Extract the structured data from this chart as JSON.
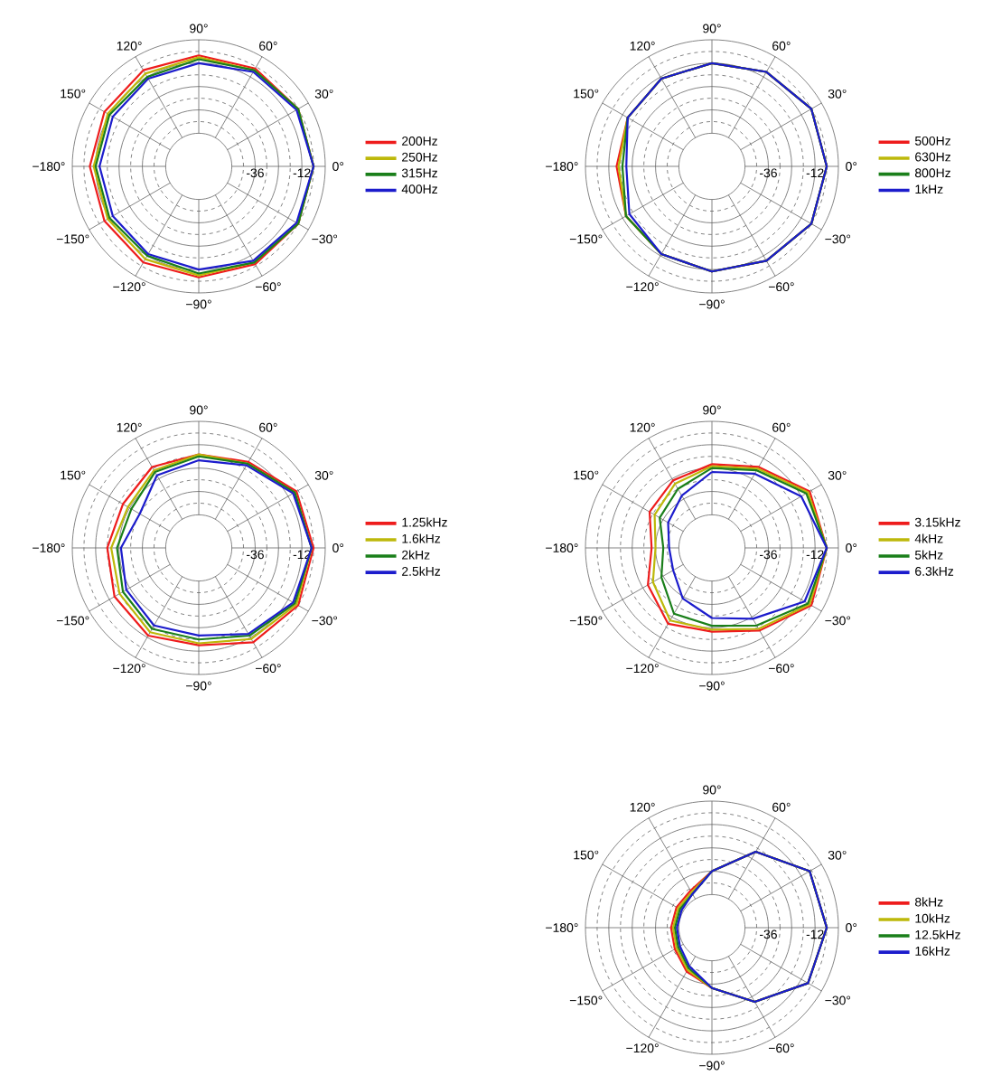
{
  "chart_data": [
    {
      "type": "radar",
      "categories": [
        "90°",
        "60°",
        "30°",
        "0°",
        "−30°",
        "−60°",
        "−90°",
        "−120°",
        "−150°",
        "−180°",
        "150°",
        "120°"
      ],
      "ylim": [
        -65,
        0
      ],
      "yticks": [
        -36,
        -12
      ],
      "grid": true,
      "legend": "right",
      "series": [
        {
          "name": "200Hz",
          "color": "#ee1c1c",
          "values": [
            -8,
            -7,
            -6,
            -6,
            -6,
            -7,
            -8,
            -8,
            -9,
            -9,
            -9,
            -8
          ]
        },
        {
          "name": "250Hz",
          "color": "#bdb80a",
          "values": [
            -9,
            -8,
            -6,
            -6,
            -6,
            -8,
            -9,
            -10,
            -11,
            -11,
            -11,
            -10
          ]
        },
        {
          "name": "315Hz",
          "color": "#1a7f1a",
          "values": [
            -10,
            -8,
            -6,
            -6,
            -6,
            -8,
            -10,
            -12,
            -12,
            -12,
            -12,
            -12
          ]
        },
        {
          "name": "400Hz",
          "color": "#1c1ccc",
          "values": [
            -12,
            -9,
            -7,
            -6,
            -7,
            -9,
            -12,
            -13,
            -14,
            -14,
            -14,
            -13
          ]
        }
      ]
    },
    {
      "type": "radar",
      "categories": [
        "90°",
        "60°",
        "30°",
        "0°",
        "−30°",
        "−60°",
        "−90°",
        "−120°",
        "−150°",
        "−180°",
        "150°",
        "120°"
      ],
      "ylim": [
        -65,
        0
      ],
      "yticks": [
        -36,
        -12
      ],
      "grid": true,
      "legend": "right",
      "series": [
        {
          "name": "500Hz",
          "color": "#ee1c1c",
          "values": [
            -12,
            -9,
            -6,
            -6,
            -6,
            -9,
            -11,
            -13,
            -14,
            -16,
            -15,
            -13
          ]
        },
        {
          "name": "630Hz",
          "color": "#bdb80a",
          "values": [
            -12,
            -9,
            -6,
            -6,
            -6,
            -9,
            -11,
            -13,
            -14,
            -17,
            -15,
            -13
          ]
        },
        {
          "name": "800Hz",
          "color": "#1a7f1a",
          "values": [
            -12,
            -9,
            -6,
            -6,
            -6,
            -9,
            -11,
            -13,
            -14,
            -19,
            -15,
            -13
          ]
        },
        {
          "name": "1kHz",
          "color": "#1c1ccc",
          "values": [
            -12,
            -9,
            -6,
            -6,
            -6,
            -9,
            -11,
            -13,
            -16,
            -21,
            -15,
            -13
          ]
        }
      ]
    },
    {
      "type": "radar",
      "categories": [
        "90°",
        "60°",
        "30°",
        "0°",
        "−30°",
        "−60°",
        "−90°",
        "−120°",
        "−150°",
        "−180°",
        "150°",
        "120°"
      ],
      "ylim": [
        -65,
        0
      ],
      "yticks": [
        -36,
        -12
      ],
      "grid": true,
      "legend": "right",
      "series": [
        {
          "name": "1.25kHz",
          "color": "#ee1c1c",
          "values": [
            -17,
            -14,
            -7,
            -6,
            -6,
            -9,
            -15,
            -13,
            -15,
            -18,
            -20,
            -17
          ]
        },
        {
          "name": "1.6kHz",
          "color": "#bdb80a",
          "values": [
            -17,
            -15,
            -8,
            -7,
            -7,
            -11,
            -16,
            -15,
            -18,
            -20,
            -23,
            -19
          ]
        },
        {
          "name": "2kHz",
          "color": "#1a7f1a",
          "values": [
            -18,
            -15,
            -8,
            -7,
            -8,
            -13,
            -18,
            -17,
            -20,
            -23,
            -25,
            -20
          ]
        },
        {
          "name": "2.5kHz",
          "color": "#1c1ccc",
          "values": [
            -20,
            -16,
            -9,
            -7,
            -9,
            -14,
            -20,
            -19,
            -22,
            -25,
            -30,
            -22
          ]
        }
      ]
    },
    {
      "type": "radar",
      "categories": [
        "90°",
        "60°",
        "30°",
        "0°",
        "−30°",
        "−60°",
        "−90°",
        "−120°",
        "−150°",
        "−180°",
        "150°",
        "120°"
      ],
      "ylim": [
        -65,
        0
      ],
      "yticks": [
        -36,
        -12
      ],
      "grid": true,
      "legend": "right",
      "series": [
        {
          "name": "3.15kHz",
          "color": "#ee1c1c",
          "values": [
            -22,
            -17,
            -7,
            -6,
            -6,
            -16,
            -22,
            -20,
            -27,
            -34,
            -28,
            -25
          ]
        },
        {
          "name": "4kHz",
          "color": "#bdb80a",
          "values": [
            -23,
            -18,
            -8,
            -6,
            -7,
            -17,
            -23,
            -22,
            -30,
            -36,
            -31,
            -27
          ]
        },
        {
          "name": "5kHz",
          "color": "#1a7f1a",
          "values": [
            -24,
            -19,
            -9,
            -6,
            -8,
            -19,
            -25,
            -26,
            -35,
            -40,
            -34,
            -30
          ]
        },
        {
          "name": "6.3kHz",
          "color": "#1c1ccc",
          "values": [
            -26,
            -21,
            -12,
            -6,
            -10,
            -23,
            -29,
            -35,
            -42,
            -43,
            -39,
            -34
          ]
        }
      ]
    },
    {
      "type": "radar",
      "categories": [
        "90°",
        "60°",
        "30°",
        "0°",
        "−30°",
        "−60°",
        "−90°",
        "−120°",
        "−150°",
        "−180°",
        "150°",
        "120°"
      ],
      "ylim": [
        -65,
        0
      ],
      "yticks": [
        -36,
        -12
      ],
      "grid": true,
      "legend": "right",
      "series": [
        {
          "name": "8kHz",
          "color": "#ee1c1c",
          "values": [
            -36,
            -20,
            -7,
            -6,
            -8,
            -21,
            -34,
            -39,
            -43,
            -44,
            -44,
            -43
          ]
        },
        {
          "name": "10kHz",
          "color": "#bdb80a",
          "values": [
            -36,
            -20,
            -7,
            -6,
            -8,
            -21,
            -34,
            -40,
            -44,
            -45,
            -45,
            -44
          ]
        },
        {
          "name": "12.5kHz",
          "color": "#1a7f1a",
          "values": [
            -36,
            -20,
            -7,
            -6,
            -8,
            -21,
            -34,
            -41,
            -45,
            -46,
            -46,
            -45
          ]
        },
        {
          "name": "16kHz",
          "color": "#1c1ccc",
          "values": [
            -36,
            -20,
            -7,
            -6,
            -8,
            -21,
            -34,
            -42,
            -46,
            -47,
            -47,
            -45
          ]
        }
      ]
    }
  ]
}
